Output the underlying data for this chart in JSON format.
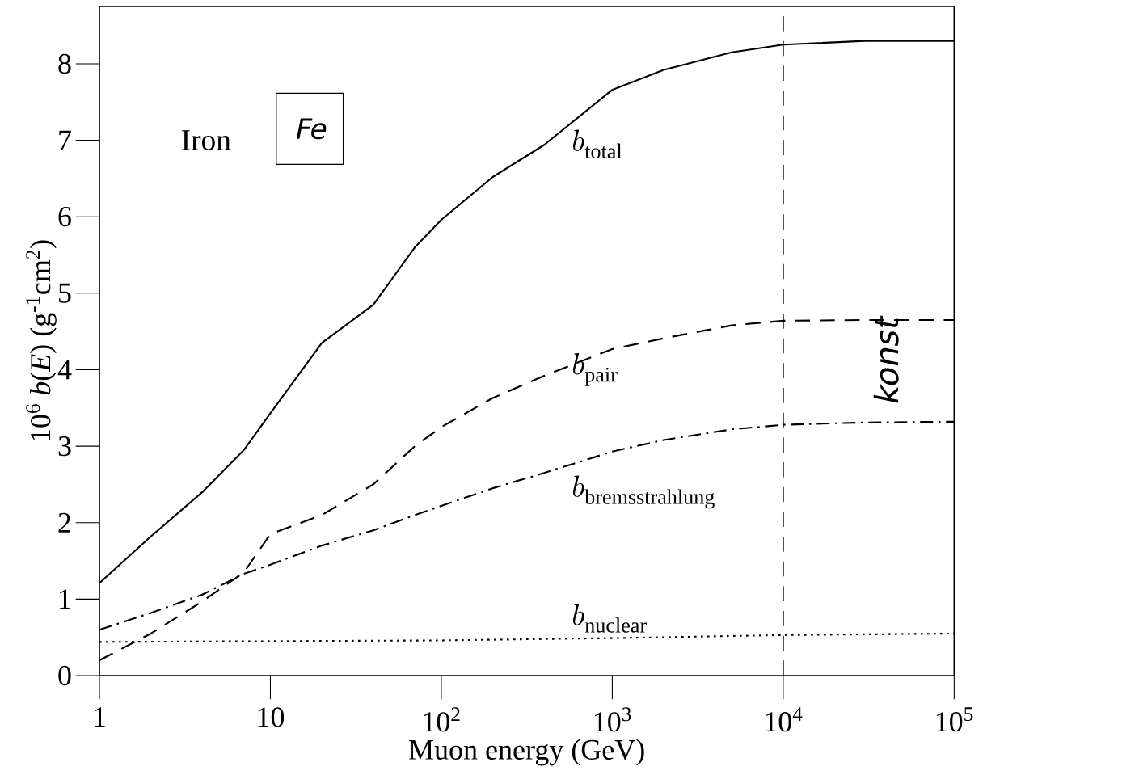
{
  "chart_data": {
    "type": "line",
    "xlabel": "Muon energy (GeV)",
    "ylabel": "10$^{6}$ *b*(*E*)  (g$^{-1}$cm$^{2}$)",
    "log": "x",
    "grid": false,
    "legend": false,
    "marker": "none",
    "x": [
      1,
      2,
      4,
      7,
      10,
      20,
      40,
      70,
      100,
      200,
      400,
      1000,
      2000,
      5000,
      10000,
      30000,
      100000
    ],
    "xlim": [
      1,
      100000
    ],
    "ylim": [
      0,
      8.75
    ],
    "xticks": [
      1,
      10,
      {
        "value": 100,
        "label": "10$^{2}$"
      },
      {
        "value": 1000,
        "label": "10$^{3}$"
      },
      {
        "value": 10000,
        "label": "10$^{4}$"
      },
      {
        "value": 100000,
        "label": "10$^{5}$"
      }
    ],
    "yticks": [
      0,
      1,
      2,
      3,
      4,
      5,
      6,
      7,
      8
    ],
    "series": [
      {
        "name": "b_{\\mathrm{total}}",
        "color": "#000000",
        "line_style": "solid",
        "values": [
          1.21,
          1.82,
          2.4,
          2.95,
          3.43,
          4.35,
          4.85,
          5.6,
          5.96,
          6.52,
          6.94,
          7.66,
          7.92,
          8.15,
          8.25,
          8.3,
          8.3
        ]
      },
      {
        "name": "b_{\\mathrm{pair}}",
        "color": "#000000",
        "line_style": "dashed",
        "values": [
          0.2,
          0.55,
          0.97,
          1.35,
          1.85,
          2.1,
          2.5,
          3.0,
          3.25,
          3.63,
          3.92,
          4.27,
          4.41,
          4.58,
          4.64,
          4.65,
          4.65
        ]
      },
      {
        "name": "b_{\\mathrm{bremsstrahlung}}",
        "color": "#000000",
        "line_style": "dash-dot",
        "values": [
          0.6,
          0.82,
          1.06,
          1.33,
          1.45,
          1.7,
          1.9,
          2.1,
          2.22,
          2.45,
          2.65,
          2.93,
          3.08,
          3.22,
          3.28,
          3.31,
          3.32
        ]
      },
      {
        "name": "b_{\\mathrm{nuclear}}",
        "color": "#000000",
        "line_style": "dotted",
        "x": [
          1,
          10,
          100,
          1000,
          10000,
          100000
        ],
        "values": [
          0.44,
          0.45,
          0.46,
          0.49,
          0.53,
          0.55
        ]
      }
    ],
    "ref_lines": [
      {
        "axis": "x",
        "value": 10000,
        "line_style": "dashed"
      }
    ],
    "annotations": [
      "Iron",
      "Fe",
      "konst"
    ]
  }
}
